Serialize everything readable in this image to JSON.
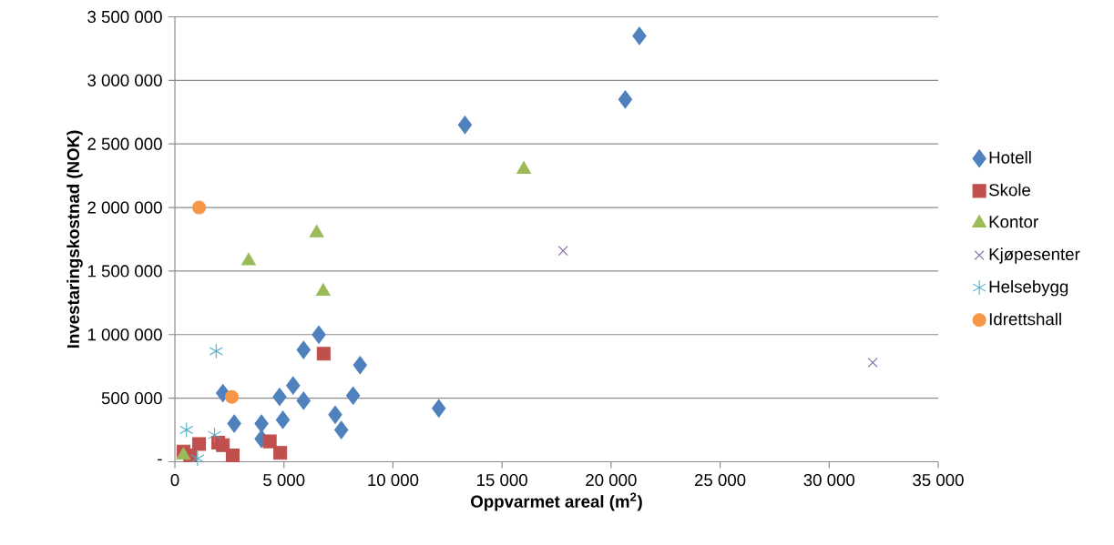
{
  "chart_data": {
    "type": "scatter",
    "xlabel": "Oppvarmet areal (m$^{2}$)",
    "ylabel": "Investaringskostnad (NOK)",
    "xlim": [
      0,
      35000
    ],
    "ylim": [
      0,
      3500000
    ],
    "xticks": [
      0,
      {
        "value": 5000,
        "label": "5 000"
      },
      {
        "value": 10000,
        "label": "10 000"
      },
      {
        "value": 15000,
        "label": "15 000"
      },
      {
        "value": 20000,
        "label": "20 000"
      },
      {
        "value": 25000,
        "label": "25 000"
      },
      {
        "value": 30000,
        "label": "30 000"
      },
      {
        "value": 35000,
        "label": "35 000"
      }
    ],
    "yticks": [
      {
        "value": 0,
        "label": "-"
      },
      {
        "value": 500000,
        "label": "500 000"
      },
      {
        "value": 1000000,
        "label": "1 000 000"
      },
      {
        "value": 1500000,
        "label": "1 500 000"
      },
      {
        "value": 2000000,
        "label": "2 000 000"
      },
      {
        "value": 2500000,
        "label": "2 500 000"
      },
      {
        "value": 3000000,
        "label": "3 000 000"
      },
      {
        "value": 3500000,
        "label": "3 500 000"
      }
    ],
    "grid": "y",
    "legend": "right",
    "series": [
      {
        "name": "Hotell",
        "color": "#4f81bd",
        "marker": "diamond",
        "x": [
          21300,
          20650,
          13300,
          12100,
          6600,
          5900,
          8490,
          2200,
          5420,
          4800,
          5900,
          8170,
          2720,
          3970,
          4950,
          7350,
          7630,
          3970
        ],
        "values": [
          3350000,
          2850000,
          2650000,
          420000,
          1000000,
          880000,
          760000,
          540000,
          600000,
          510000,
          480000,
          520000,
          300000,
          300000,
          330000,
          370000,
          250000,
          180000
        ]
      },
      {
        "name": "Skole",
        "color": "#c0504d",
        "marker": "square",
        "x": [
          6820,
          1110,
          1990,
          2200,
          2650,
          4350,
          4830,
          390,
          700
        ],
        "values": [
          850000,
          140000,
          150000,
          130000,
          50000,
          160000,
          70000,
          80000,
          50000
        ]
      },
      {
        "name": "Kontor",
        "color": "#9bbb59",
        "marker": "triangle",
        "x": [
          16000,
          6500,
          3380,
          6800,
          390
        ],
        "values": [
          2300000,
          1800000,
          1580000,
          1340000,
          50000
        ]
      },
      {
        "name": "Kjøpesenter",
        "color": "#8064a2",
        "marker": "cross",
        "x": [
          17800,
          32000
        ],
        "values": [
          1660000,
          780000
        ]
      },
      {
        "name": "Helsebygg",
        "color": "#4bacc6",
        "x": [
          1890,
          530,
          1820,
          1040
        ],
        "values": [
          870000,
          250000,
          210000,
          25000
        ]
      },
      {
        "name": "Idrettshall",
        "color": "#f79646",
        "marker": "circle",
        "x": [
          1110,
          2610
        ],
        "values": [
          2000000,
          510000
        ]
      }
    ]
  }
}
